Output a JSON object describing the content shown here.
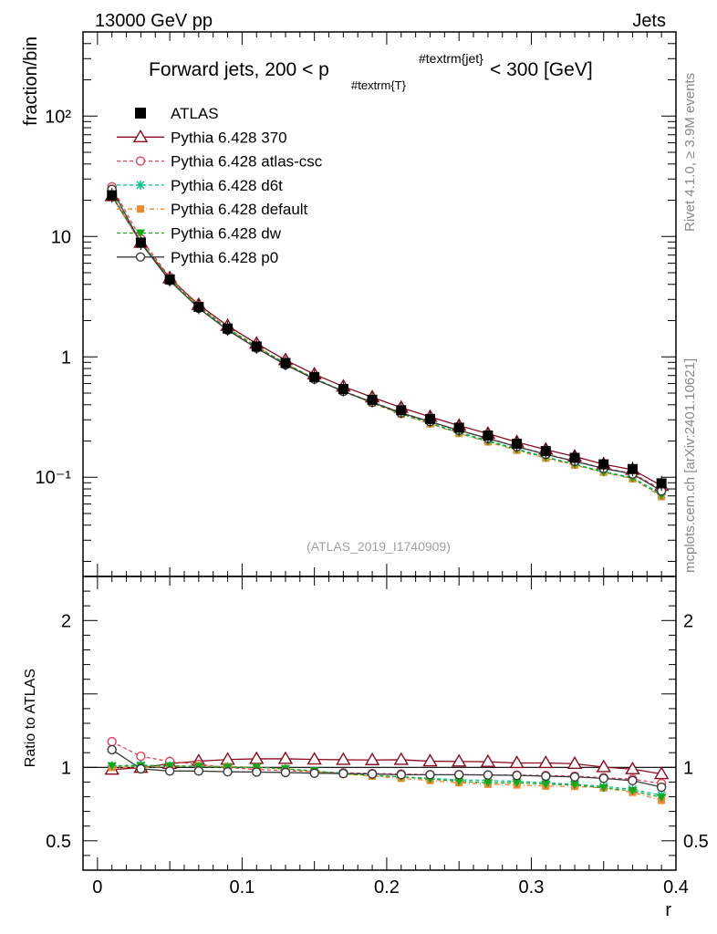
{
  "header": {
    "left": "13000 GeV pp",
    "right": "Jets"
  },
  "side_labels": {
    "rivet": "Rivet 4.1.0, ≥ 3.9M events",
    "mcplots": "mcplots.cern.ch [arXiv:2401.10621]"
  },
  "chart_data": {
    "type": "line",
    "title": "Forward jets, 200 < p_{#textrm{T}}^{#textrm{jet}} < 300 [GeV]",
    "title_parts": {
      "a": "Forward jets, 200 < p",
      "sub": "#textrm{T}",
      "sup": "#textrm{jet}",
      "b": "< 300 [GeV]"
    },
    "watermark": "(ATLAS_2019_I1740909)",
    "xlabel": "r",
    "ylabel": "fraction/bin",
    "ratio_ylabel": "Ratio to ATLAS",
    "xlim": [
      -0.01,
      0.4
    ],
    "ylim": [
      0.015,
      500
    ],
    "ratio_ylim": [
      0.3,
      2.3
    ],
    "x_ticks": [
      "0",
      "0.1",
      "0.2",
      "0.3",
      "0.4"
    ],
    "y_ticks": [
      "10⁻¹",
      "1",
      "10",
      "10²"
    ],
    "ratio_ticks": [
      "0.5",
      "1",
      "2"
    ],
    "x": [
      0.01,
      0.03,
      0.05,
      0.07,
      0.09,
      0.11,
      0.13,
      0.15,
      0.17,
      0.19,
      0.21,
      0.23,
      0.25,
      0.27,
      0.29,
      0.31,
      0.33,
      0.35,
      0.37,
      0.39
    ],
    "data": {
      "name": "ATLAS",
      "values": [
        22.0,
        8.9,
        4.4,
        2.6,
        1.72,
        1.22,
        0.89,
        0.68,
        0.54,
        0.44,
        0.36,
        0.305,
        0.258,
        0.222,
        0.19,
        0.165,
        0.145,
        0.128,
        0.117,
        0.089
      ]
    },
    "series": [
      {
        "name": "Pythia 6.428 370",
        "color": "#8b0a1e",
        "dash": "",
        "marker": "tri-open",
        "ratio": [
          0.985,
          0.998,
          1.025,
          1.042,
          1.053,
          1.058,
          1.058,
          1.054,
          1.052,
          1.05,
          1.052,
          1.042,
          1.04,
          1.038,
          1.03,
          1.03,
          1.025,
          1.002,
          0.988,
          0.955
        ]
      },
      {
        "name": "Pythia 6.428 atlas-csc",
        "color": "#e8405a",
        "dash": "4,3",
        "marker": "circle-open",
        "ratio": [
          1.175,
          1.075,
          1.04,
          1.02,
          1.0,
          0.985,
          0.978,
          0.97,
          0.963,
          0.958,
          0.955,
          0.95,
          0.95,
          0.948,
          0.947,
          0.945,
          0.94,
          0.93,
          0.92,
          0.89
        ]
      },
      {
        "name": "Pythia 6.428 d6t",
        "color": "#00c28a",
        "dash": "4,3",
        "marker": "star",
        "ratio": [
          1.01,
          1.015,
          1.01,
          1.008,
          1.005,
          1.0,
          0.99,
          0.975,
          0.96,
          0.945,
          0.935,
          0.925,
          0.915,
          0.91,
          0.905,
          0.895,
          0.885,
          0.87,
          0.85,
          0.81
        ]
      },
      {
        "name": "Pythia 6.428 default",
        "color": "#f08a30",
        "dash": "5,3,1,3",
        "marker": "square",
        "ratio": [
          1.0,
          1.0,
          1.005,
          1.01,
          1.005,
          1.0,
          0.99,
          0.97,
          0.955,
          0.94,
          0.925,
          0.91,
          0.895,
          0.885,
          0.88,
          0.872,
          0.87,
          0.86,
          0.83,
          0.775
        ]
      },
      {
        "name": "Pythia 6.428 dw",
        "color": "#16a81e",
        "dash": "4,3",
        "marker": "tri-down",
        "ratio": [
          1.01,
          1.01,
          1.01,
          1.005,
          1.0,
          1.0,
          0.99,
          0.975,
          0.955,
          0.945,
          0.935,
          0.92,
          0.905,
          0.895,
          0.895,
          0.885,
          0.88,
          0.86,
          0.84,
          0.795
        ]
      },
      {
        "name": "Pythia 6.428 p0",
        "color": "#3a3a3a",
        "dash": "",
        "marker": "circle-open",
        "ratio": [
          1.12,
          0.99,
          0.975,
          0.975,
          0.97,
          0.968,
          0.965,
          0.96,
          0.958,
          0.955,
          0.95,
          0.95,
          0.95,
          0.948,
          0.945,
          0.94,
          0.935,
          0.925,
          0.91,
          0.865
        ]
      }
    ]
  }
}
